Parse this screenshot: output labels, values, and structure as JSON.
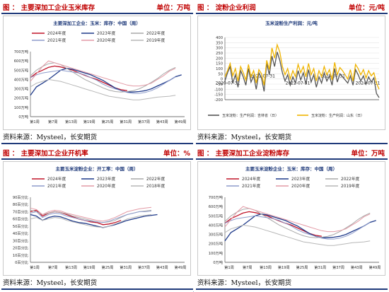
{
  "panels": [
    {
      "header": {
        "title": "图 ： 主要深加工企业玉米库存",
        "unit": "单位：万吨"
      },
      "source": "资料来源：Mysteel，长安期货"
    },
    {
      "header": {
        "title": "图 ： 淀粉企业利润",
        "unit": "单位：元/吨"
      },
      "source": "资料来源：Mysteel，长安期货"
    },
    {
      "header": {
        "title": "图 ： 主要深加工企业开机率",
        "unit": "单位：%"
      },
      "source": "资料来源：Mysteel，长安期货"
    },
    {
      "header": {
        "title": "图 ： 主要深加工企业淀粉库存",
        "unit": "单位：万吨"
      },
      "source": "资料来源：Mysteel，长安期货"
    }
  ],
  "chart_data": [
    {
      "type": "line",
      "title": "主要深加工企业：玉米：库存：中国（周）",
      "ylim": [
        0,
        700
      ],
      "yticks": [
        "0万吨",
        "100万吨",
        "200万吨",
        "300万吨",
        "400万吨",
        "500万吨",
        "600万吨",
        "700万吨"
      ],
      "xticks": [
        "第1周",
        "第7周",
        "第13周",
        "第19周",
        "第25周",
        "第31周",
        "第37周",
        "第43周",
        "第49周"
      ],
      "legend_position": "top",
      "series": [
        {
          "name": "2024年度",
          "color": "#c0152a",
          "values": [
            420,
            470,
            500,
            530,
            545,
            535,
            520,
            500,
            470,
            445,
            420,
            400,
            370,
            340,
            310,
            290,
            280
          ]
        },
        {
          "name": "2023年度",
          "color": "#1f3a8a",
          "values": [
            230,
            320,
            360,
            400,
            450,
            500,
            520,
            510,
            490,
            470,
            450,
            420,
            390,
            350,
            310,
            280,
            265,
            265,
            270,
            280,
            300,
            330,
            360,
            390,
            430,
            450
          ]
        },
        {
          "name": "2022年度",
          "color": "#a8a8a8",
          "values": [
            440,
            500,
            540,
            570,
            580,
            560,
            520,
            480,
            440,
            400,
            370,
            340,
            310,
            285,
            270,
            265,
            270,
            280,
            300,
            330,
            370,
            410,
            460,
            500,
            530
          ]
        },
        {
          "name": "2021年度",
          "color": "#8e9ccb",
          "values": [
            420,
            450,
            470,
            480,
            490,
            500,
            490,
            480,
            470,
            450,
            420,
            390,
            350,
            320,
            300,
            280,
            260,
            250,
            250,
            260,
            280,
            310,
            350,
            390,
            430
          ]
        },
        {
          "name": "2020年度",
          "color": "#e39aa5",
          "values": [
            380,
            460,
            540,
            600,
            580,
            560,
            540,
            520,
            500,
            480,
            460,
            440,
            420,
            400,
            380,
            360,
            340,
            330,
            330,
            340,
            360,
            400,
            440,
            490,
            520
          ]
        },
        {
          "name": "2019年度",
          "color": "#b7b7b7",
          "values": [
            320,
            360,
            380,
            400,
            390,
            380,
            360,
            340,
            320,
            300,
            280,
            260,
            240,
            220,
            210,
            200,
            190,
            180,
            180,
            190,
            200,
            210,
            215,
            220,
            230
          ]
        }
      ]
    },
    {
      "type": "line",
      "title": "玉米淀粉生产利润：元/吨",
      "ylim": [
        -200,
        400
      ],
      "yticks": [
        "-200",
        "-150",
        "-100",
        "-50",
        "0",
        "50",
        "100",
        "150",
        "200",
        "250",
        "300",
        "350",
        "400"
      ],
      "xticks": [
        "2020-07-31",
        "2022-07-31",
        "2024-07-31"
      ],
      "xticks_secondary": [
        "2021-07-31",
        "2023-07-31"
      ],
      "legend_position": "bottom",
      "series": [
        {
          "name": "玉米淀粉：生产利润：吉林省（日）",
          "color": "#555555",
          "values": [
            -20,
            60,
            120,
            -40,
            40,
            -80,
            80,
            20,
            -60,
            100,
            -30,
            30,
            -100,
            60,
            10,
            -120,
            150,
            40,
            220,
            120,
            260,
            180,
            60,
            -20,
            40,
            -60,
            20,
            -40,
            80,
            -10,
            60,
            -50,
            90,
            -30,
            40,
            -80,
            20,
            -40,
            60,
            -20,
            30,
            -60,
            100,
            -30,
            50,
            20,
            -10,
            -40,
            30,
            -60,
            90,
            40,
            -20,
            30,
            -50,
            20,
            -30,
            10,
            -140,
            -180
          ]
        },
        {
          "name": "玉米淀粉：生产利润：山东（日）",
          "color": "#f0b400",
          "values": [
            20,
            80,
            150,
            30,
            100,
            -20,
            120,
            60,
            -10,
            140,
            20,
            80,
            -40,
            90,
            50,
            -60,
            180,
            90,
            300,
            200,
            330,
            260,
            120,
            40,
            100,
            0,
            80,
            20,
            140,
            60,
            120,
            20,
            150,
            40,
            100,
            -20,
            80,
            20,
            120,
            40,
            90,
            -10,
            160,
            40,
            110,
            80,
            40,
            0,
            90,
            -20,
            140,
            100,
            40,
            90,
            10,
            80,
            30,
            60,
            -40,
            -100
          ]
        }
      ]
    },
    {
      "type": "line",
      "title": "主要玉米淀粉企业：开工率：中国（周）",
      "ylim": [
        0,
        90
      ],
      "yticks": [
        "0百分比",
        "10百分比",
        "20百分比",
        "30百分比",
        "40百分比",
        "50百分比",
        "60百分比",
        "70百分比",
        "80百分比",
        "90百分比"
      ],
      "xticks": [
        "第1周",
        "第7周",
        "第13周",
        "第19周",
        "第25周",
        "第31周",
        "第37周",
        "第43周",
        "第49周"
      ],
      "legend_position": "top",
      "series": [
        {
          "name": "2024年度",
          "color": "#c0152a",
          "values": [
            70,
            72,
            64,
            68,
            70,
            69,
            66,
            63,
            60,
            58,
            56,
            55,
            52,
            53,
            55,
            58
          ]
        },
        {
          "name": "2023年度",
          "color": "#1f3a8a",
          "values": [
            66,
            64,
            58,
            62,
            64,
            63,
            60,
            57,
            55,
            54,
            52,
            50,
            48,
            50,
            52,
            55,
            58,
            60,
            62,
            64,
            65,
            66
          ]
        },
        {
          "name": "2022年度",
          "color": "#a8a8a8",
          "values": [
            72,
            70,
            66,
            68,
            70,
            69,
            67,
            64,
            62,
            60,
            58,
            56,
            55,
            56,
            58,
            62,
            66,
            68,
            70,
            71,
            72
          ]
        },
        {
          "name": "2021年度",
          "color": "#8e9ccb",
          "values": [
            68,
            70,
            62,
            66,
            68,
            67,
            64,
            62,
            60,
            58,
            57,
            56,
            55,
            57,
            60,
            63,
            66,
            68,
            70,
            70,
            71
          ]
        },
        {
          "name": "2020年度",
          "color": "#e39aa5",
          "values": [
            75,
            73,
            66,
            70,
            72,
            71,
            68,
            66,
            64,
            62,
            60,
            58,
            57,
            59,
            62,
            66,
            70,
            72,
            74,
            75,
            76
          ]
        },
        {
          "name": "2018年度",
          "color": "#b7b7b7",
          "values": [
            60,
            62,
            58,
            60,
            62,
            61,
            58,
            56,
            54,
            52,
            50,
            49,
            48,
            50,
            53,
            56,
            60,
            62,
            64,
            65,
            66
          ]
        }
      ]
    },
    {
      "type": "line",
      "title": "主要玉米淀粉企业：玉米：库存：中国（周）",
      "ylim": [
        0,
        700
      ],
      "yticks": [
        "0万吨",
        "100万吨",
        "200万吨",
        "300万吨",
        "400万吨",
        "500万吨",
        "600万吨",
        "700万吨"
      ],
      "xticks": [
        "第1周",
        "第7周",
        "第13周",
        "第19周",
        "第25周",
        "第31周",
        "第37周",
        "第43周",
        "第49周"
      ],
      "legend_position": "top",
      "series": [
        {
          "name": "2024年度",
          "color": "#c0152a",
          "values": [
            420,
            470,
            500,
            530,
            545,
            535,
            520,
            500,
            470,
            445,
            420,
            400,
            370,
            340,
            310,
            290,
            280
          ]
        },
        {
          "name": "2023年度",
          "color": "#1f3a8a",
          "values": [
            230,
            320,
            360,
            400,
            450,
            500,
            520,
            510,
            490,
            470,
            450,
            420,
            390,
            350,
            310,
            280,
            265,
            265,
            270,
            280,
            300,
            330,
            360,
            390,
            430,
            450
          ]
        },
        {
          "name": "2022年度",
          "color": "#a8a8a8",
          "values": [
            440,
            500,
            540,
            570,
            580,
            560,
            520,
            480,
            440,
            400,
            370,
            340,
            310,
            285,
            270,
            265,
            270,
            280,
            300,
            330,
            370,
            410,
            460,
            500,
            530
          ]
        },
        {
          "name": "2021年度",
          "color": "#8e9ccb",
          "values": [
            420,
            450,
            470,
            480,
            490,
            500,
            490,
            480,
            470,
            450,
            420,
            390,
            350,
            320,
            300,
            280,
            260,
            250,
            250,
            260,
            280,
            310,
            350,
            390,
            430
          ]
        },
        {
          "name": "2020年度",
          "color": "#e39aa5",
          "values": [
            380,
            460,
            540,
            600,
            580,
            560,
            540,
            520,
            500,
            480,
            460,
            440,
            420,
            400,
            380,
            360,
            340,
            330,
            330,
            340,
            360,
            400,
            440,
            490,
            520
          ]
        },
        {
          "name": "2019年度",
          "color": "#b7b7b7",
          "values": [
            320,
            360,
            380,
            400,
            390,
            380,
            360,
            340,
            320,
            300,
            280,
            260,
            240,
            220,
            210,
            200,
            190,
            180,
            180,
            190,
            200,
            210,
            215,
            220,
            230
          ]
        }
      ]
    }
  ]
}
